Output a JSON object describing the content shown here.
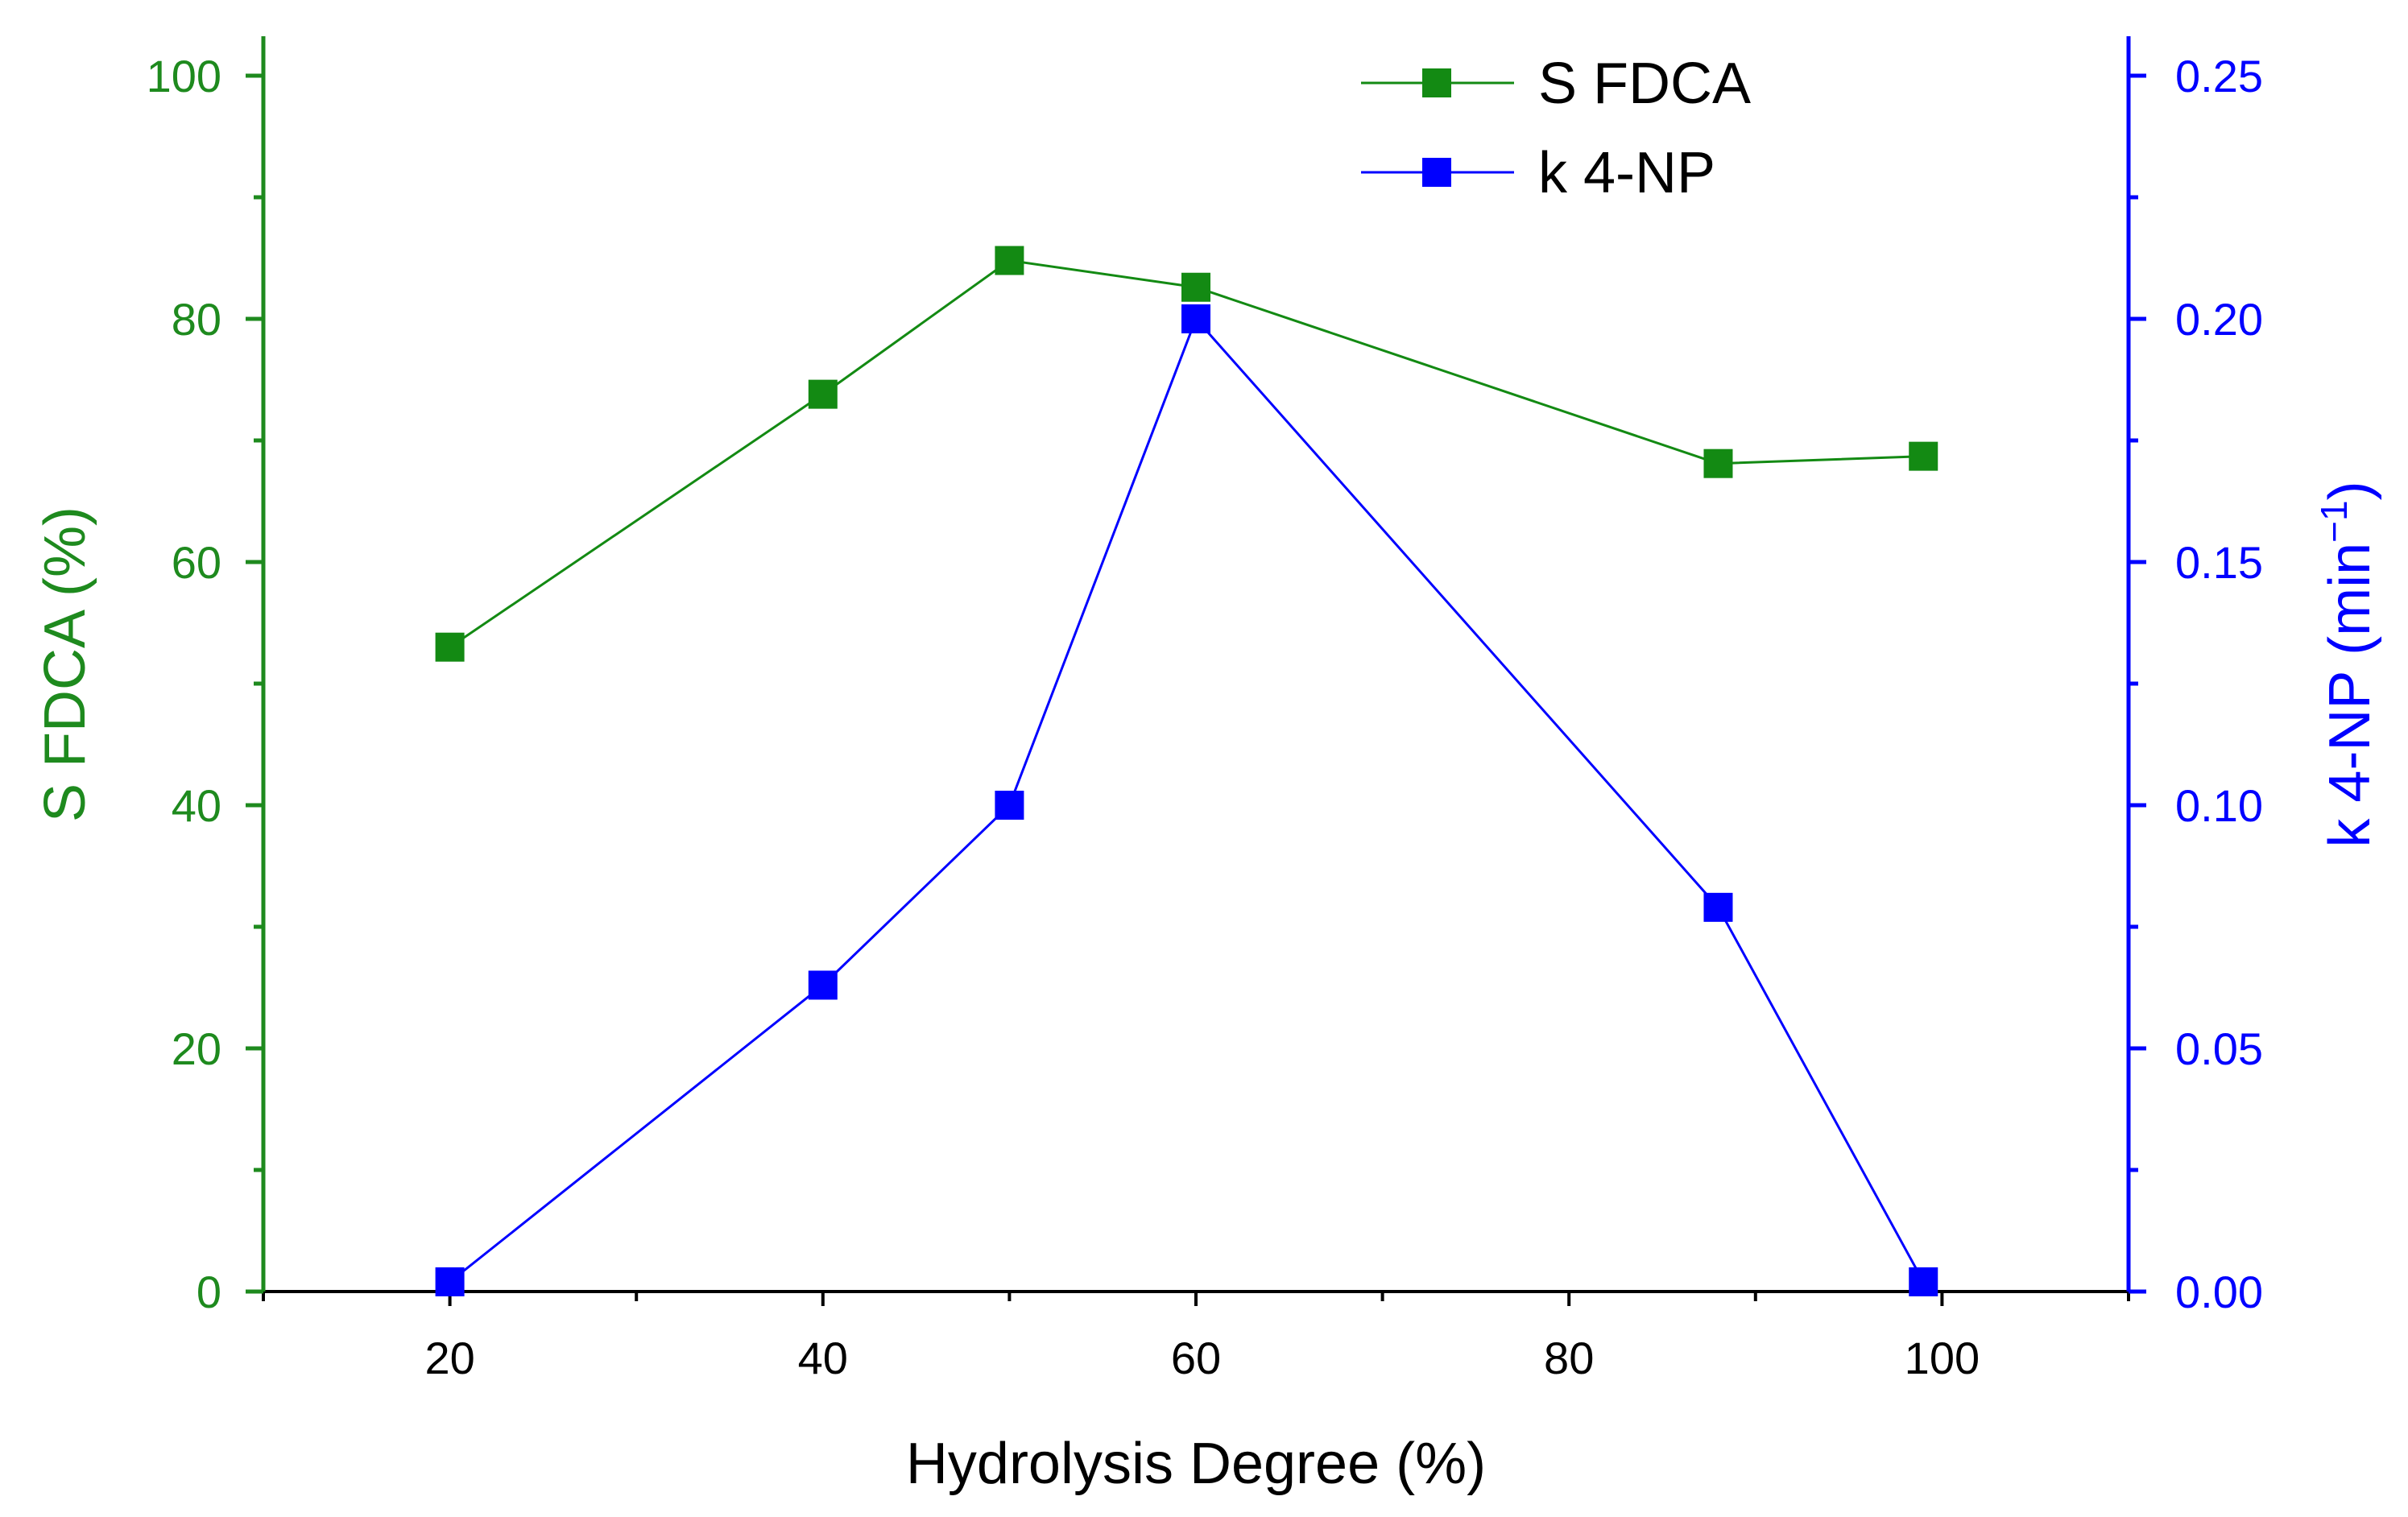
{
  "chart_data": {
    "type": "line",
    "xlabel": "Hydrolysis Degree (%)",
    "xlim": [
      10,
      110
    ],
    "x_ticks": [
      20,
      40,
      60,
      80,
      100
    ],
    "x_tick_labels": [
      "20",
      "40",
      "60",
      "80",
      "100"
    ],
    "x_minor_ticks": [
      10,
      30,
      50,
      70,
      90,
      110
    ],
    "y_left": {
      "label": "S FDCA (%)",
      "lim": [
        0,
        100
      ],
      "ticks": [
        0,
        20,
        40,
        60,
        80,
        100
      ],
      "tick_labels": [
        "0",
        "20",
        "40",
        "60",
        "80",
        "100"
      ],
      "minor_ticks": [
        10,
        30,
        50,
        70,
        90
      ],
      "color": "#1e8a1e"
    },
    "y_right": {
      "label_main": "k 4-NP (min",
      "label_sup": "−1",
      "label_close": ")",
      "lim": [
        0,
        0.25
      ],
      "ticks": [
        0,
        0.05,
        0.1,
        0.15,
        0.2,
        0.25
      ],
      "tick_labels": [
        "0.00",
        "0.05",
        "0.10",
        "0.15",
        "0.20",
        "0.25"
      ],
      "minor_ticks": [
        0.025,
        0.075,
        0.125,
        0.175,
        0.225
      ],
      "color": "#0000ff"
    },
    "series": [
      {
        "name": "S FDCA",
        "axis": "left",
        "color": "#138a13",
        "x": [
          20,
          40,
          50,
          60,
          88,
          99
        ],
        "y": [
          53,
          73.8,
          84.8,
          82.6,
          68.1,
          68.7
        ]
      },
      {
        "name": "k 4-NP",
        "axis": "right",
        "color": "#0000ff",
        "x": [
          20,
          40,
          50,
          60,
          88,
          99
        ],
        "y": [
          0.002,
          0.063,
          0.1,
          0.2,
          0.079,
          0.002
        ]
      }
    ],
    "legend": {
      "position": "top-center",
      "entries": [
        "S FDCA",
        "k 4-NP"
      ]
    }
  }
}
